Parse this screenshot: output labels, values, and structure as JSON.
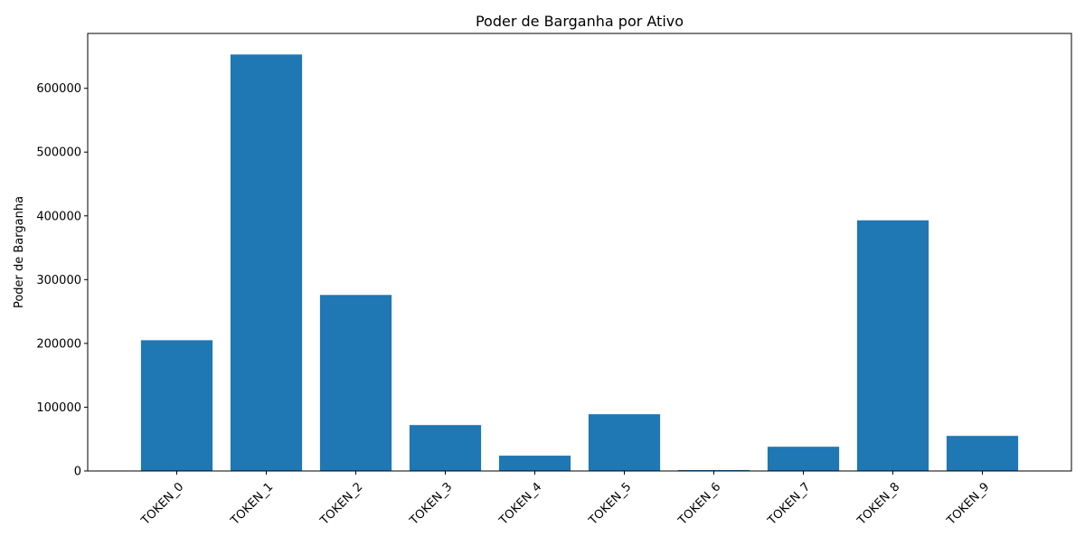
{
  "chart_data": {
    "type": "bar",
    "title": "Poder de Barganha por Ativo",
    "xlabel": "",
    "ylabel": "Poder de Barganha",
    "categories": [
      "TOKEN_0",
      "TOKEN_1",
      "TOKEN_2",
      "TOKEN_3",
      "TOKEN_4",
      "TOKEN_5",
      "TOKEN_6",
      "TOKEN_7",
      "TOKEN_8",
      "TOKEN_9"
    ],
    "values": [
      205000,
      653000,
      276000,
      72000,
      24000,
      89000,
      1500,
      38000,
      393000,
      55000
    ],
    "ylim": [
      0,
      686000
    ],
    "yticks": [
      0,
      100000,
      200000,
      300000,
      400000,
      500000,
      600000
    ],
    "bar_color": "#1f77b4",
    "grid": false,
    "legend": "none"
  }
}
